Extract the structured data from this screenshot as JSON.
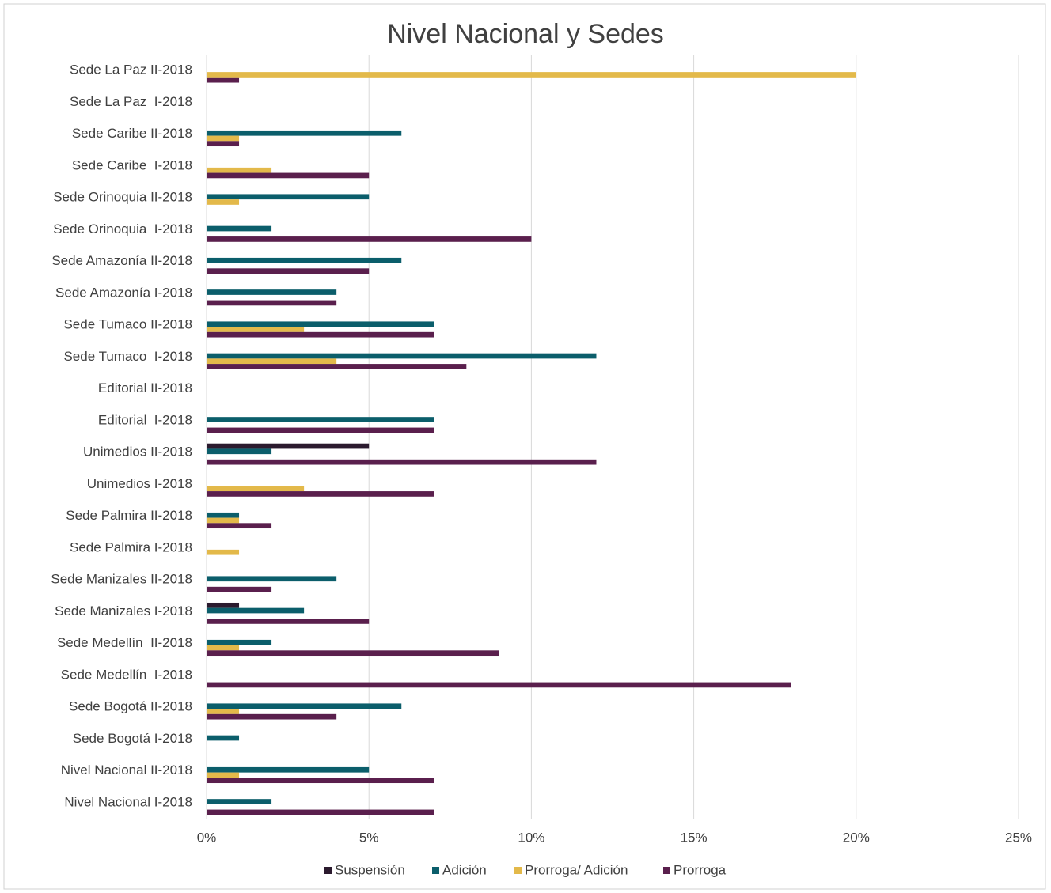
{
  "chart_data": {
    "type": "hbar",
    "title": "Nivel Nacional y Sedes",
    "categories": [
      "Sede La Paz II-2018",
      "Sede La Paz  I-2018",
      "Sede Caribe II-2018",
      "Sede Caribe  I-2018",
      "Sede Orinoquia II-2018",
      "Sede Orinoquia  I-2018",
      "Sede Amazonía II-2018",
      "Sede Amazonía I-2018",
      "Sede Tumaco II-2018",
      "Sede Tumaco  I-2018",
      "Editorial II-2018",
      "Editorial  I-2018",
      "Unimedios II-2018",
      "Unimedios I-2018",
      "Sede Palmira II-2018",
      "Sede Palmira I-2018",
      "Sede Manizales II-2018",
      "Sede Manizales I-2018",
      "Sede Medellín  II-2018",
      "Sede Medellín  I-2018",
      "Sede Bogotá II-2018",
      "Sede Bogotá I-2018",
      "Nivel Nacional II-2018",
      "Nivel Nacional I-2018"
    ],
    "series": [
      {
        "name": "Suspensión",
        "color": "#2b1a2e",
        "values": [
          0,
          0,
          0,
          0,
          0,
          0,
          0,
          0,
          0,
          0,
          0,
          0,
          5,
          0,
          0,
          0,
          0,
          1,
          0,
          0,
          0,
          0,
          0,
          0
        ]
      },
      {
        "name": "Adición",
        "color": "#0b5e6b",
        "values": [
          0,
          0,
          6,
          0,
          5,
          2,
          6,
          4,
          7,
          12,
          0,
          7,
          2,
          0,
          1,
          0,
          4,
          3,
          2,
          0,
          6,
          1,
          5,
          2
        ]
      },
      {
        "name": "Prorroga/ Adición",
        "color": "#e3b94a",
        "values": [
          20,
          0,
          1,
          2,
          1,
          0,
          0,
          0,
          3,
          4,
          0,
          0,
          0,
          3,
          1,
          1,
          0,
          0,
          1,
          0,
          1,
          0,
          1,
          0
        ]
      },
      {
        "name": "Prorroga",
        "color": "#5a1f4d",
        "values": [
          1,
          0,
          1,
          5,
          0,
          10,
          5,
          4,
          7,
          8,
          0,
          7,
          12,
          7,
          2,
          0,
          2,
          5,
          9,
          18,
          4,
          0,
          7,
          7
        ]
      }
    ],
    "xlim": [
      0,
      25
    ],
    "xticks": [
      {
        "value": 0,
        "label": "0%"
      },
      {
        "value": 5,
        "label": "5%"
      },
      {
        "value": 10,
        "label": "10%"
      },
      {
        "value": 15,
        "label": "15%"
      },
      {
        "value": 20,
        "label": "20%"
      },
      {
        "value": 25,
        "label": "25%"
      }
    ],
    "grid": true,
    "legend": "bottom"
  }
}
